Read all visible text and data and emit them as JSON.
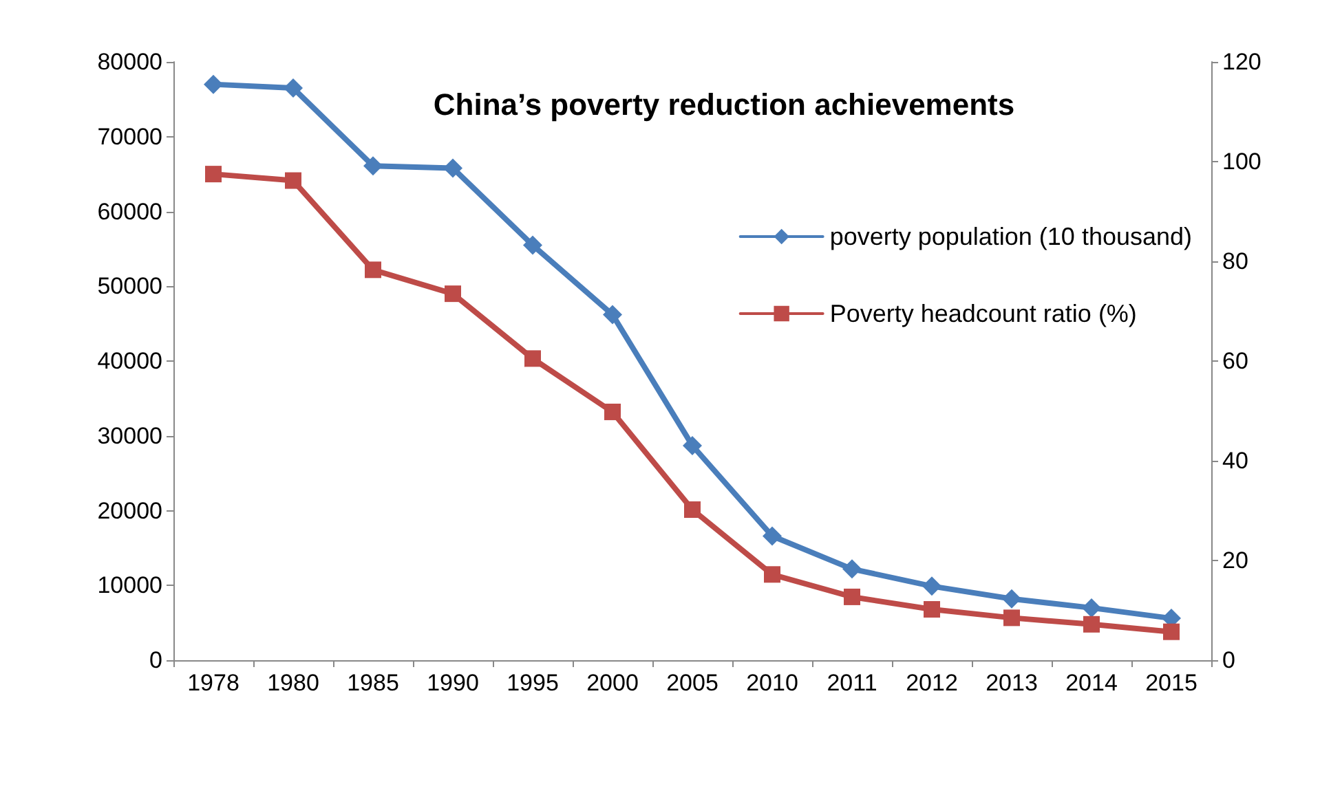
{
  "chart_data": {
    "type": "line",
    "title": "China’s poverty reduction achievements",
    "categories": [
      "1978",
      "1980",
      "1985",
      "1990",
      "1995",
      "2000",
      "2005",
      "2010",
      "2011",
      "2012",
      "2013",
      "2014",
      "2015"
    ],
    "series": [
      {
        "name": "poverty population (10 thousand)",
        "color": "#4a7ebb",
        "marker": "diamond",
        "values": [
          77000,
          76500,
          66100,
          65800,
          55500,
          46200,
          28700,
          16600,
          12200,
          9900,
          8200,
          7000,
          5600
        ]
      },
      {
        "name": "Poverty headcount ratio (%)",
        "color": "#be4b48",
        "marker": "square",
        "axis": "y2",
        "values": [
          97.5,
          96.2,
          78.3,
          73.5,
          60.5,
          49.8,
          30.2,
          17.2,
          12.7,
          10.2,
          8.5,
          7.2,
          5.7
        ]
      }
    ],
    "ylim": [
      0,
      80000
    ],
    "yticks": [
      0,
      10000,
      20000,
      30000,
      40000,
      50000,
      60000,
      70000,
      80000
    ],
    "y2lim": [
      0,
      120
    ],
    "y2ticks": [
      0,
      20,
      40,
      60,
      80,
      100,
      120
    ],
    "grid": false,
    "legend": "right",
    "line_style": "solid"
  }
}
